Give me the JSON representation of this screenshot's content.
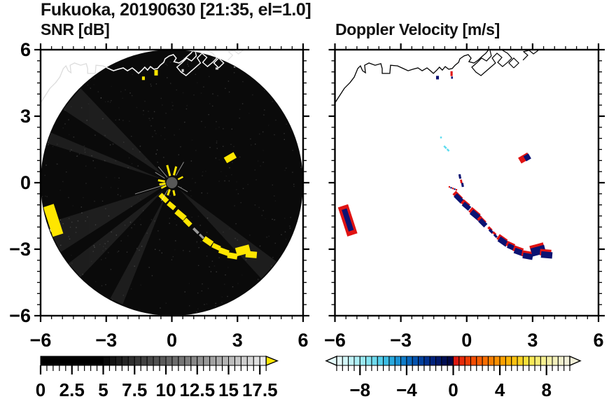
{
  "header": {
    "title": "Fukuoka, 20190630 [21:35, el=1.0]"
  },
  "chart_data": [
    {
      "type": "heatmap",
      "name": "snr",
      "title": "SNR [dB]",
      "xlim": [
        -6,
        6
      ],
      "ylim": [
        -6,
        6
      ],
      "xticks": {
        "values": [
          -6,
          -3,
          0,
          3,
          6
        ],
        "labels": [
          "−6",
          "−3",
          "0",
          "3",
          "6"
        ]
      },
      "yticks": {
        "values": [
          6,
          3,
          0,
          -3,
          -6
        ],
        "labels": [
          "6",
          "3",
          "0",
          "−3",
          "−6"
        ]
      },
      "tick_minor_step": 0.5,
      "tick_major_step": 3,
      "scan_circle": {
        "center": [
          0,
          0
        ],
        "radius": 6,
        "fill": "#0a0a0a"
      },
      "radar_site_marker": {
        "x": 0,
        "y": 0,
        "radius_px": 8,
        "color": "#585858"
      },
      "colorbar": {
        "min": 0,
        "max": 18,
        "cell_step": 0.5,
        "major_step": 2.5,
        "labels": [
          "0",
          "2.5",
          "5",
          "7.5",
          "10",
          "12.5",
          "15",
          "17.5"
        ],
        "label_values": [
          0,
          2.5,
          5,
          7.5,
          10,
          12.5,
          15,
          17.5
        ],
        "style": "grayscale",
        "black_below": 5.0,
        "over_arrow_color": "#ffe600"
      },
      "features": {
        "echo_color": "#ffe600",
        "band_arc": [
          [
            -0.37,
            -0.69,
            0.45,
            0.22,
            45
          ],
          [
            -0.02,
            -1.04,
            0.38,
            0.22,
            40
          ],
          [
            0.4,
            -1.45,
            0.51,
            0.26,
            40
          ],
          [
            0.72,
            -1.79,
            0.38,
            0.22,
            45
          ],
          [
            1.65,
            -2.64,
            0.45,
            0.26,
            35
          ],
          [
            2.03,
            -2.89,
            0.38,
            0.22,
            25
          ],
          [
            2.38,
            -3.11,
            0.45,
            0.26,
            20
          ],
          [
            2.77,
            -3.3,
            0.45,
            0.26,
            10
          ],
          [
            3.25,
            -3.05,
            0.64,
            0.38,
            -15
          ],
          [
            3.63,
            -3.24,
            0.51,
            0.29,
            5
          ]
        ],
        "faint_dashes": [
          [
            1.1,
            -2.17,
            0.32,
            0.12,
            45
          ],
          [
            1.36,
            -2.42,
            0.26,
            0.1,
            45
          ]
        ],
        "faint_dash_color": "#9a9a9a",
        "edge_blob": [
          -5.42,
          -1.7,
          0.5,
          1.4,
          -18
        ],
        "edge_blob_fringe": [
          -5.55,
          -2.15,
          0.3,
          0.12,
          -40
        ],
        "offshore_blob": [
          2.67,
          1.13,
          0.51,
          0.29,
          -30
        ],
        "coast_specks_yellow": [
          [
            -1.3,
            4.71,
            0.13,
            0.16
          ],
          [
            -0.72,
            4.96,
            0.16,
            0.25
          ]
        ],
        "coast_specks_gray": [
          [
            0.5,
            5.06,
            0.1,
            0.13
          ],
          [
            2.06,
            5.15,
            0.13,
            0.1
          ],
          [
            2.9,
            5.25,
            0.13,
            0.1
          ]
        ],
        "coast_speck_gray_color": "#cfcfcf",
        "center_spokes_yellow": [
          [
            105,
            10,
            26,
            3
          ],
          [
            75,
            11,
            24,
            3
          ],
          [
            170,
            10,
            20,
            3
          ],
          [
            188,
            9,
            18,
            3
          ],
          [
            252,
            10,
            19,
            3
          ],
          [
            282,
            11,
            19,
            3
          ],
          [
            28,
            10,
            18,
            2.5
          ],
          [
            207,
            9,
            17,
            2.5
          ]
        ],
        "center_hairlines_white": [
          [
            60,
            12,
            34
          ],
          [
            130,
            10,
            30
          ],
          [
            197,
            12,
            55
          ],
          [
            330,
            10,
            26
          ],
          [
            240,
            12,
            30
          ],
          [
            148,
            12,
            28
          ]
        ],
        "noise_wedges": [
          [
            205,
            14
          ],
          [
            222,
            8
          ],
          [
            318,
            10
          ],
          [
            140,
            12
          ],
          [
            245,
            6
          ],
          [
            160,
            5
          ]
        ]
      }
    },
    {
      "type": "heatmap",
      "name": "doppler",
      "title": "Doppler Velocity [m/s]",
      "xlim": [
        -6,
        6
      ],
      "ylim": [
        -6,
        6
      ],
      "xticks": {
        "values": [
          -6,
          -3,
          0,
          3,
          6
        ],
        "labels": [
          "−6",
          "−3",
          "0",
          "3",
          "6"
        ]
      },
      "yticks": {
        "values": [
          6,
          3,
          0,
          -3,
          -6
        ],
        "labels": [
          "6",
          "3",
          "0",
          "−3",
          "−6"
        ]
      },
      "tick_minor_step": 0.5,
      "tick_major_step": 3,
      "colorbar": {
        "min": -10,
        "max": 10,
        "cell_step": 0.5,
        "major_step": 4,
        "labels": [
          "−8",
          "−4",
          "0",
          "4",
          "8"
        ],
        "label_values": [
          -8,
          -4,
          0,
          4,
          8
        ],
        "colors": [
          "#e4fafa",
          "#d2f6f8",
          "#c0f2f7",
          "#adeef5",
          "#9ae9f3",
          "#85e3f1",
          "#6edaee",
          "#55ceea",
          "#3cbce4",
          "#28a8dd",
          "#1a92d3",
          "#0f7cc8",
          "#0866bc",
          "#0453ae",
          "#02409e",
          "#01308e",
          "#00227c",
          "#001768",
          "#000e54",
          "#000744",
          "#dc1810",
          "#e62a0a",
          "#ee3b04",
          "#f34c00",
          "#f75d00",
          "#f96e00",
          "#fb7f00",
          "#fc9000",
          "#fda100",
          "#fdb204",
          "#fdc310",
          "#fcd222",
          "#fae03a",
          "#f8e856",
          "#f7ed74",
          "#f5ef90",
          "#f4f0a8",
          "#f3f0bc",
          "#f2f0cc",
          "#f1efd8"
        ]
      },
      "features": {
        "toward_color": "#0b1272",
        "away_color": "#e01313",
        "weak_color": "#5fdcef",
        "band_arc": [
          [
            -0.37,
            -0.69,
            0.45,
            0.22,
            45
          ],
          [
            -0.02,
            -1.04,
            0.38,
            0.22,
            40
          ],
          [
            0.4,
            -1.45,
            0.51,
            0.26,
            40
          ],
          [
            0.72,
            -1.79,
            0.38,
            0.22,
            45
          ],
          [
            1.65,
            -2.64,
            0.45,
            0.26,
            35
          ],
          [
            2.03,
            -2.89,
            0.38,
            0.22,
            25
          ],
          [
            2.38,
            -3.11,
            0.45,
            0.26,
            20
          ],
          [
            2.77,
            -3.3,
            0.45,
            0.26,
            10
          ],
          [
            3.25,
            -3.05,
            0.64,
            0.38,
            -15
          ],
          [
            3.63,
            -3.24,
            0.51,
            0.29,
            5
          ]
        ],
        "band_small": [
          [
            1.1,
            -2.17,
            0.22,
            0.12,
            45
          ],
          [
            1.3,
            -2.38,
            0.18,
            0.1,
            45
          ]
        ],
        "start_dashes": [
          [
            "toward",
            -0.31,
            0.28,
            0.1,
            0.2,
            -10
          ],
          [
            "away",
            -0.25,
            0.06,
            0.09,
            0.16,
            -10
          ],
          [
            "toward",
            -0.19,
            -0.1,
            0.1,
            0.18,
            -10
          ]
        ],
        "dot_trail": [
          [
            -0.79,
            -0.19
          ],
          [
            -0.71,
            -0.23
          ],
          [
            -0.63,
            -0.26
          ],
          [
            -0.55,
            -0.29
          ],
          [
            -0.47,
            -0.32
          ]
        ],
        "cyan_dashes": [
          [
            -1.17,
            2.04,
            0.08,
            0.08,
            0
          ],
          [
            -0.98,
            1.6,
            0.16,
            0.08,
            45
          ],
          [
            -0.85,
            1.47,
            0.13,
            0.08,
            45
          ]
        ],
        "edge_blob_red": [
          -5.42,
          -1.7,
          0.48,
          1.38,
          -18
        ],
        "edge_blob_navy": [
          -5.42,
          -1.68,
          0.24,
          1.02,
          -18
        ],
        "edge_blob_nub": [
          -5.28,
          -2.32,
          0.14,
          0.1,
          -18
        ],
        "offshore_blob_red": [
          2.62,
          1.11,
          0.48,
          0.3,
          -30
        ],
        "offshore_blob_navy": [
          2.76,
          1.14,
          0.26,
          0.26,
          -30
        ],
        "coast_specks": [
          [
            "toward",
            -1.33,
            4.74,
            0.13,
            0.16
          ],
          [
            "away",
            -0.69,
            4.92,
            0.1,
            0.22
          ],
          [
            "toward",
            -0.67,
            4.74,
            0.08,
            0.1
          ]
        ]
      }
    }
  ],
  "map": {
    "coastline": [
      [
        -6.0,
        3.6
      ],
      [
        -5.57,
        4.26
      ],
      [
        -5.31,
        4.52
      ],
      [
        -5.12,
        4.77
      ],
      [
        -4.96,
        5.15
      ],
      [
        -4.84,
        5.27
      ],
      [
        -4.74,
        5.05
      ],
      [
        -4.61,
        4.96
      ],
      [
        -4.65,
        5.3
      ],
      [
        -4.45,
        5.4
      ],
      [
        -4.17,
        5.3
      ],
      [
        -3.91,
        5.37
      ],
      [
        -3.85,
        5.15
      ],
      [
        -3.85,
        4.93
      ],
      [
        -3.5,
        4.93
      ],
      [
        -3.47,
        5.3
      ],
      [
        -3.15,
        5.27
      ],
      [
        -2.89,
        5.15
      ],
      [
        -2.67,
        5.05
      ],
      [
        -2.45,
        5.12
      ],
      [
        -2.22,
        5.18
      ],
      [
        -2.03,
        5.05
      ],
      [
        -1.81,
        5.18
      ],
      [
        -1.65,
        5.05
      ],
      [
        -1.52,
        4.93
      ],
      [
        -1.36,
        5.08
      ],
      [
        -1.24,
        5.21
      ],
      [
        -1.11,
        5.08
      ],
      [
        -0.98,
        5.24
      ],
      [
        -0.82,
        5.12
      ],
      [
        -0.66,
        5.15
      ],
      [
        -0.53,
        5.3
      ],
      [
        -0.37,
        5.43
      ],
      [
        -0.31,
        5.59
      ],
      [
        -0.12,
        5.72
      ],
      [
        0.07,
        5.78
      ],
      [
        0.2,
        5.62
      ],
      [
        0.1,
        5.46
      ],
      [
        0.33,
        5.4
      ],
      [
        0.52,
        5.53
      ],
      [
        0.68,
        5.68
      ],
      [
        0.87,
        5.84
      ],
      [
        1.0,
        6.0
      ]
    ],
    "port_shapes": [
      [
        [
          1.06,
          5.97
        ],
        [
          1.12,
          5.72
        ],
        [
          0.9,
          5.49
        ],
        [
          0.68,
          5.62
        ],
        [
          0.45,
          5.4
        ],
        [
          0.23,
          5.21
        ],
        [
          0.42,
          4.99
        ],
        [
          0.65,
          4.83
        ],
        [
          0.87,
          5.02
        ],
        [
          1.09,
          5.21
        ],
        [
          1.31,
          5.4
        ],
        [
          1.16,
          5.62
        ],
        [
          1.38,
          5.84
        ],
        [
          1.6,
          5.65
        ],
        [
          1.41,
          5.43
        ],
        [
          1.63,
          5.24
        ],
        [
          1.86,
          5.43
        ],
        [
          2.05,
          5.62
        ],
        [
          1.86,
          5.84
        ],
        [
          1.63,
          5.97
        ]
      ],
      [
        [
          2.14,
          5.18
        ],
        [
          1.92,
          5.4
        ],
        [
          2.14,
          5.62
        ],
        [
          2.37,
          5.4
        ],
        [
          2.14,
          5.18
        ]
      ],
      [
        [
          2.56,
          5.53
        ],
        [
          2.78,
          5.75
        ],
        [
          2.59,
          5.91
        ],
        [
          2.84,
          5.97
        ],
        [
          3.04,
          5.81
        ],
        [
          3.26,
          5.97
        ]
      ]
    ]
  }
}
